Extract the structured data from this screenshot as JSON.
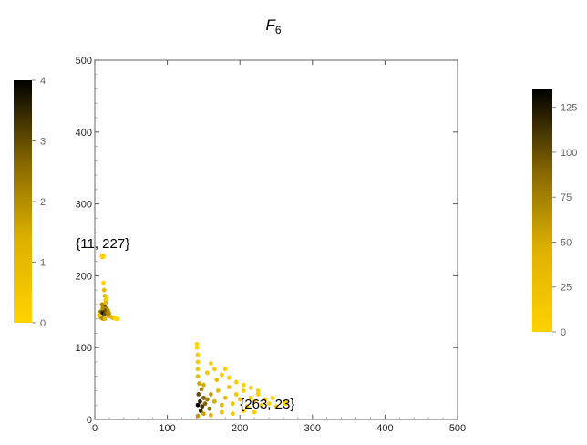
{
  "chart_data": {
    "type": "scatter",
    "title": {
      "main": "F",
      "subscript": "6"
    },
    "xlim": [
      0,
      500
    ],
    "ylim": [
      0,
      500
    ],
    "x_ticks": [
      0,
      100,
      200,
      300,
      400,
      500
    ],
    "y_ticks": [
      0,
      100,
      200,
      300,
      400,
      500
    ],
    "x_tick_labels": [
      "0",
      "100",
      "200",
      "300",
      "400",
      "500"
    ],
    "y_tick_labels": [
      "0",
      "100",
      "200",
      "300",
      "400",
      "500"
    ],
    "grid": false,
    "colormap": {
      "low": "#ffd200",
      "high": "#000000"
    },
    "colorbars": [
      {
        "position": "left",
        "range": [
          0,
          4
        ],
        "ticks": [
          0,
          1,
          2,
          3,
          4
        ],
        "tick_labels": [
          "0",
          "1",
          "2",
          "3",
          "4"
        ]
      },
      {
        "position": "right",
        "range": [
          0,
          135
        ],
        "ticks": [
          0,
          25,
          50,
          75,
          100,
          125
        ],
        "tick_labels": [
          "0",
          "25",
          "50",
          "75",
          "100",
          "125"
        ]
      }
    ],
    "clusters": [
      {
        "name": "",
        "colorbar": 0,
        "points": [
          [
            11,
            227,
            0
          ],
          [
            12,
            190,
            0
          ],
          [
            13,
            180,
            1
          ],
          [
            14,
            172,
            1
          ],
          [
            15,
            166,
            1
          ],
          [
            10,
            160,
            2
          ],
          [
            12,
            158,
            2
          ],
          [
            14,
            156,
            3
          ],
          [
            16,
            154,
            2
          ],
          [
            18,
            152,
            2
          ],
          [
            8,
            150,
            2
          ],
          [
            10,
            149,
            3
          ],
          [
            12,
            148,
            4
          ],
          [
            14,
            147,
            3
          ],
          [
            16,
            146,
            3
          ],
          [
            18,
            145,
            2
          ],
          [
            20,
            144,
            2
          ],
          [
            22,
            143,
            1
          ],
          [
            24,
            142,
            1
          ],
          [
            26,
            141,
            1
          ],
          [
            28,
            141,
            0
          ],
          [
            30,
            140,
            0
          ],
          [
            32,
            140,
            0
          ],
          [
            6,
            145,
            1
          ],
          [
            8,
            142,
            1
          ],
          [
            10,
            141,
            2
          ],
          [
            12,
            140,
            2
          ],
          [
            14,
            140,
            1
          ],
          [
            20,
            148,
            1
          ],
          [
            15,
            162,
            1
          ],
          [
            16,
            168,
            0
          ],
          [
            17,
            150,
            2
          ],
          [
            19,
            147,
            2
          ],
          [
            13,
            152,
            3
          ],
          [
            11,
            155,
            2
          ]
        ]
      },
      {
        "name": "",
        "colorbar": 1,
        "points": [
          [
            263,
            23,
            0
          ],
          [
            142,
            20,
            135
          ],
          [
            145,
            25,
            120
          ],
          [
            148,
            18,
            110
          ],
          [
            150,
            30,
            95
          ],
          [
            143,
            35,
            100
          ],
          [
            146,
            12,
            115
          ],
          [
            152,
            22,
            90
          ],
          [
            155,
            28,
            75
          ],
          [
            158,
            15,
            80
          ],
          [
            160,
            35,
            60
          ],
          [
            147,
            42,
            70
          ],
          [
            144,
            50,
            55
          ],
          [
            150,
            48,
            50
          ],
          [
            165,
            25,
            50
          ],
          [
            170,
            40,
            35
          ],
          [
            175,
            20,
            40
          ],
          [
            180,
            30,
            30
          ],
          [
            168,
            55,
            25
          ],
          [
            185,
            45,
            20
          ],
          [
            190,
            22,
            25
          ],
          [
            195,
            35,
            15
          ],
          [
            200,
            28,
            15
          ],
          [
            205,
            40,
            10
          ],
          [
            210,
            18,
            10
          ],
          [
            215,
            30,
            8
          ],
          [
            220,
            25,
            5
          ],
          [
            225,
            35,
            4
          ],
          [
            230,
            20,
            3
          ],
          [
            235,
            28,
            2
          ],
          [
            240,
            22,
            2
          ],
          [
            245,
            30,
            1
          ],
          [
            250,
            18,
            1
          ],
          [
            142,
            60,
            30
          ],
          [
            142,
            70,
            20
          ],
          [
            142,
            80,
            10
          ],
          [
            142,
            90,
            5
          ],
          [
            141,
            100,
            2
          ],
          [
            141,
            105,
            1
          ],
          [
            142,
            5,
            60
          ],
          [
            150,
            8,
            55
          ],
          [
            160,
            6,
            40
          ],
          [
            175,
            10,
            25
          ],
          [
            190,
            8,
            15
          ],
          [
            205,
            12,
            8
          ],
          [
            220,
            10,
            4
          ],
          [
            155,
            65,
            15
          ],
          [
            165,
            70,
            8
          ],
          [
            175,
            62,
            10
          ],
          [
            185,
            58,
            6
          ],
          [
            195,
            52,
            8
          ],
          [
            205,
            48,
            6
          ],
          [
            215,
            44,
            4
          ],
          [
            225,
            40,
            2
          ],
          [
            160,
            78,
            4
          ],
          [
            180,
            70,
            3
          ]
        ]
      }
    ],
    "annotations": [
      {
        "text": "{11, 227}",
        "x": 11,
        "y": 227,
        "anchor": "above"
      },
      {
        "text": "{263, 23}",
        "x": 263,
        "y": 23,
        "anchor": "left"
      }
    ]
  }
}
